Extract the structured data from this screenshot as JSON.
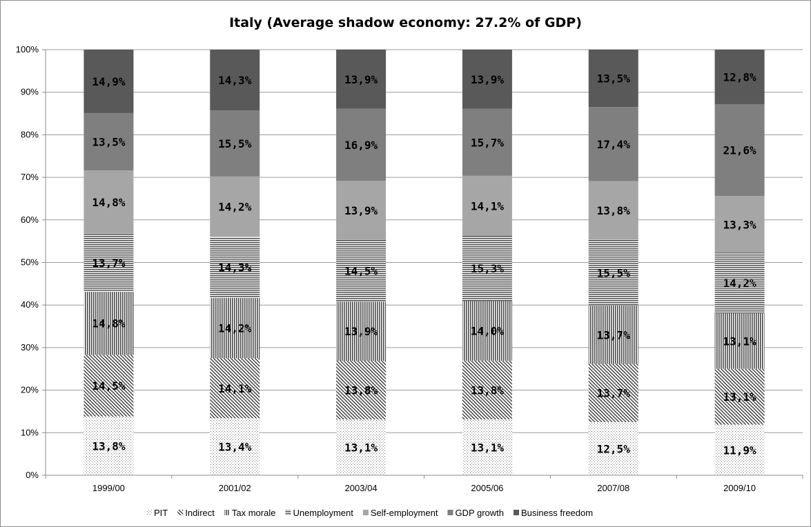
{
  "chart_data": {
    "type": "bar",
    "stacked": true,
    "normalized": true,
    "title": "Italy (Average shadow economy: 27.2% of GDP)",
    "xlabel": "",
    "ylabel": "",
    "ylim": [
      0,
      100
    ],
    "y_ticks": [
      "0%",
      "10%",
      "20%",
      "30%",
      "40%",
      "50%",
      "60%",
      "70%",
      "80%",
      "90%",
      "100%"
    ],
    "grid": true,
    "legend_position": "bottom",
    "categories": [
      "1999/00",
      "2001/02",
      "2003/04",
      "2005/06",
      "2007/08",
      "2009/10"
    ],
    "series": [
      {
        "name": "PIT",
        "pattern": "dots",
        "color": "#ffffff",
        "values": [
          13.8,
          13.4,
          13.1,
          13.1,
          12.5,
          11.9
        ],
        "labels": [
          "13,8%",
          "13,4%",
          "13,1%",
          "13,1%",
          "12,5%",
          "11,9%"
        ]
      },
      {
        "name": "Indirect",
        "pattern": "diagonal",
        "color": "#ffffff",
        "values": [
          14.5,
          14.1,
          13.8,
          13.8,
          13.7,
          13.1
        ],
        "labels": [
          "14,5%",
          "14,1%",
          "13,8%",
          "13,8%",
          "13,7%",
          "13,1%"
        ]
      },
      {
        "name": "Tax morale",
        "pattern": "vertical",
        "color": "#ffffff",
        "values": [
          14.8,
          14.2,
          13.9,
          14.0,
          13.7,
          13.1
        ],
        "labels": [
          "14,8%",
          "14,2%",
          "13,9%",
          "14,0%",
          "13,7%",
          "13,1%"
        ]
      },
      {
        "name": "Unemployment",
        "pattern": "horizontal",
        "color": "#ffffff",
        "values": [
          13.7,
          14.3,
          14.5,
          15.3,
          15.5,
          14.2
        ],
        "labels": [
          "13,7%",
          "14,3%",
          "14,5%",
          "15,3%",
          "15,5%",
          "14,2%"
        ]
      },
      {
        "name": "Self-employment",
        "pattern": "solid",
        "color": "#a6a6a6",
        "values": [
          14.8,
          14.2,
          13.9,
          14.1,
          13.8,
          13.3
        ],
        "labels": [
          "14,8%",
          "14,2%",
          "13,9%",
          "14,1%",
          "13,8%",
          "13,3%"
        ]
      },
      {
        "name": "GDP growth",
        "pattern": "solid",
        "color": "#7f7f7f",
        "values": [
          13.5,
          15.5,
          16.9,
          15.7,
          17.4,
          21.6
        ],
        "labels": [
          "13,5%",
          "15,5%",
          "16,9%",
          "15,7%",
          "17,4%",
          "21,6%"
        ]
      },
      {
        "name": "Business freedom",
        "pattern": "solid",
        "color": "#595959",
        "values": [
          14.9,
          14.3,
          13.9,
          13.9,
          13.5,
          12.8
        ],
        "labels": [
          "14,9%",
          "14,3%",
          "13,9%",
          "13,9%",
          "13,5%",
          "12,8%"
        ]
      }
    ]
  }
}
